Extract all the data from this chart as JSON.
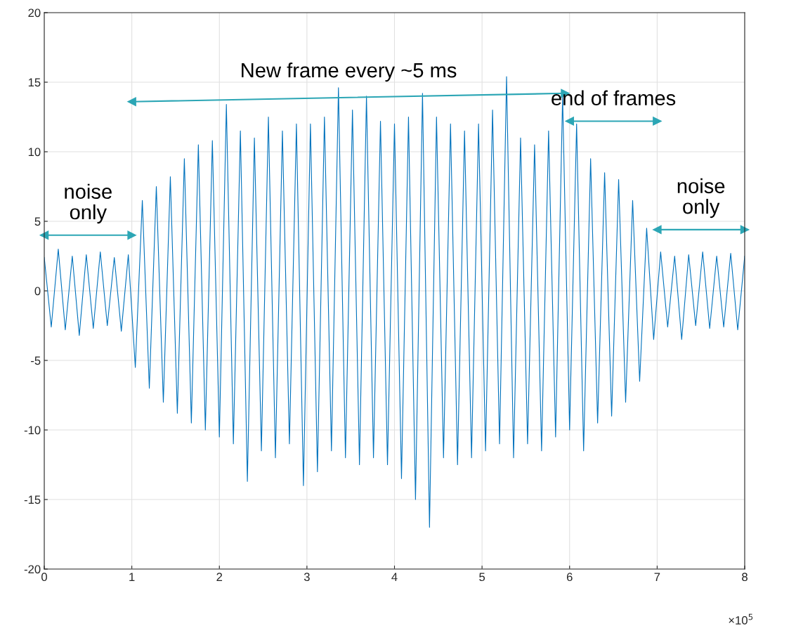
{
  "chart_data": {
    "type": "line",
    "x": [
      0,
      0.08,
      0.16,
      0.24,
      0.32,
      0.4,
      0.48,
      0.56,
      0.64,
      0.72,
      0.8,
      0.88,
      0.96,
      1.04,
      1.12,
      1.2,
      1.28,
      1.36,
      1.44,
      1.52,
      1.6,
      1.68,
      1.76,
      1.84,
      1.92,
      2.0,
      2.08,
      2.16,
      2.24,
      2.32,
      2.4,
      2.48,
      2.56,
      2.64,
      2.72,
      2.8,
      2.88,
      2.96,
      3.04,
      3.12,
      3.2,
      3.28,
      3.36,
      3.44,
      3.52,
      3.6,
      3.68,
      3.76,
      3.84,
      3.92,
      4.0,
      4.08,
      4.16,
      4.24,
      4.32,
      4.4,
      4.48,
      4.56,
      4.64,
      4.72,
      4.8,
      4.88,
      4.96,
      5.04,
      5.12,
      5.2,
      5.28,
      5.36,
      5.44,
      5.52,
      5.6,
      5.68,
      5.76,
      5.84,
      5.92,
      6.0,
      6.08,
      6.16,
      6.24,
      6.32,
      6.4,
      6.48,
      6.56,
      6.64,
      6.72,
      6.8,
      6.88,
      6.96,
      7.04,
      7.12,
      7.2,
      7.28,
      7.36,
      7.44,
      7.52,
      7.6,
      7.68,
      7.76,
      7.84,
      7.92,
      8.0
    ],
    "series": [
      {
        "color": "#0072bd",
        "values": [
          2.4,
          -2.6,
          3.0,
          -2.8,
          2.5,
          -3.2,
          2.6,
          -2.7,
          2.8,
          -2.5,
          2.4,
          -2.9,
          2.6,
          -5.5,
          6.5,
          -7.0,
          7.5,
          -8.0,
          8.2,
          -8.8,
          9.5,
          -9.5,
          10.5,
          -10.0,
          10.8,
          -10.5,
          13.4,
          -11.0,
          11.5,
          -13.7,
          11.0,
          -11.5,
          12.5,
          -12.0,
          11.5,
          -11.0,
          12.0,
          -14.0,
          12.0,
          -13.0,
          12.5,
          -11.5,
          14.6,
          -12.0,
          13.0,
          -12.5,
          14.0,
          -12.0,
          12.2,
          -12.5,
          12.0,
          -13.5,
          12.5,
          -15.0,
          14.2,
          -17.0,
          12.5,
          -12.0,
          12.0,
          -12.5,
          11.5,
          -12.0,
          12.0,
          -11.5,
          13.0,
          -11.0,
          15.4,
          -12.0,
          11.0,
          -11.0,
          10.5,
          -11.5,
          11.5,
          -10.5,
          14.0,
          -10.0,
          12.0,
          -11.5,
          9.5,
          -9.5,
          8.5,
          -9.0,
          8.0,
          -8.0,
          6.5,
          -6.5,
          4.5,
          -3.5,
          2.8,
          -2.6,
          2.5,
          -3.5,
          2.6,
          -2.5,
          2.8,
          -2.7,
          2.5,
          -2.6,
          2.7,
          -2.8,
          2.5
        ]
      },
      {
        "type": "line",
        "marker": "triangle",
        "color": "#2ca6b5",
        "x": [
          1.0,
          5.95
        ],
        "values": [
          13.6,
          14.2
        ]
      },
      {
        "type": "line",
        "marker": "triangle",
        "color": "#2ca6b5",
        "x": [
          6.0,
          7.0
        ],
        "values": [
          12.2,
          12.2
        ]
      },
      {
        "type": "line",
        "marker": "triangle",
        "color": "#2ca6b5",
        "x": [
          0,
          1.0
        ],
        "values": [
          4.0,
          4.0
        ]
      },
      {
        "type": "line",
        "marker": "triangle",
        "color": "#2ca6b5",
        "x": [
          7.0,
          8.0
        ],
        "values": [
          4.4,
          4.4
        ]
      }
    ],
    "xlim": [
      0,
      8
    ],
    "xticks": [
      0,
      1,
      2,
      3,
      4,
      5,
      6,
      7,
      8
    ],
    "ylim": [
      -20,
      20
    ],
    "yticks": [
      -20,
      -15,
      -10,
      -5,
      0,
      5,
      10,
      15,
      20
    ],
    "grid": true,
    "annotations": [
      "New frame every ~5 ms",
      "end of frames",
      "noise\nonly",
      "noise\nonly",
      "×10$^{5}$"
    ]
  }
}
